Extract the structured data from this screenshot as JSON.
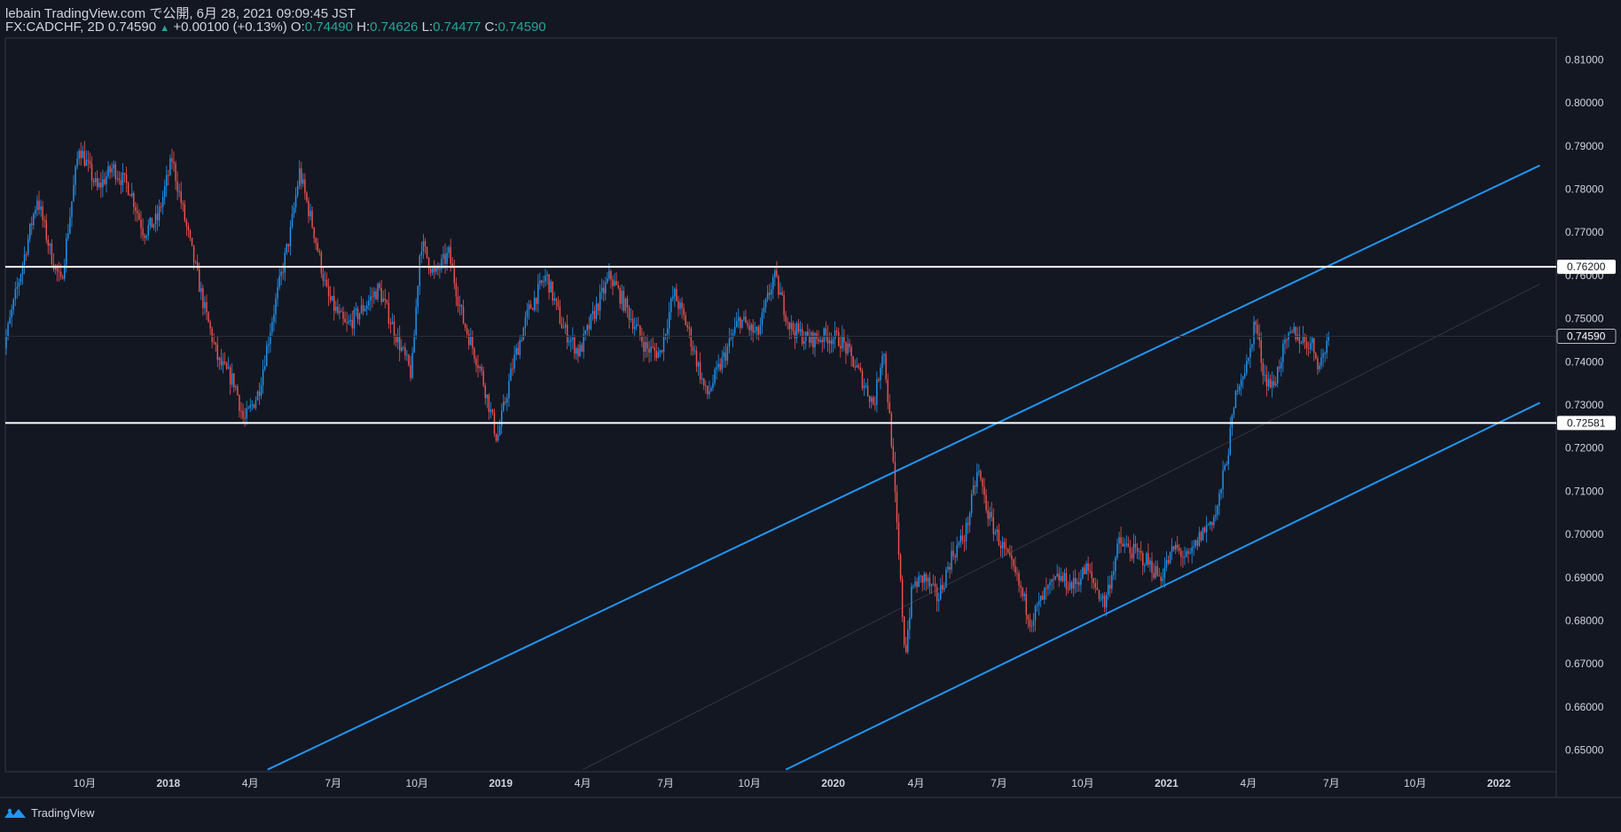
{
  "header": {
    "title": "lebain TradingView.com で公開, 6月 28, 2021 09:09:45 JST",
    "symbol": "FX:CADCHF, 2D 0.74590",
    "change": "+0.00100 (+0.13%)",
    "o_label": "O:",
    "o_value": "0.74490",
    "h_label": "H:",
    "h_value": "0.74626",
    "l_label": "L:",
    "l_value": "0.74477",
    "c_label": "C:",
    "c_value": "0.74590"
  },
  "footer": {
    "brand": "TradingView"
  },
  "colors": {
    "background": "#131722",
    "up": "#2196f3",
    "down": "#ef5350",
    "line": "#2196f3",
    "level": "#ffffff",
    "text": "#d1d4dc",
    "accent": "#26a69a"
  },
  "chart_data": {
    "type": "candlestick",
    "ylim": [
      0.645,
      0.815
    ],
    "y_ticks": [
      "0.81000",
      "0.80000",
      "0.79000",
      "0.78000",
      "0.77000",
      "0.76000",
      "0.75000",
      "0.74000",
      "0.73000",
      "0.72000",
      "0.71000",
      "0.70000",
      "0.69000",
      "0.68000",
      "0.67000",
      "0.66000",
      "0.65000"
    ],
    "x_ticks": [
      {
        "label": "10月",
        "date": "2017-10-01"
      },
      {
        "label": "2018",
        "date": "2018-01-01"
      },
      {
        "label": "4月",
        "date": "2018-04-01"
      },
      {
        "label": "7月",
        "date": "2018-07-01"
      },
      {
        "label": "10月",
        "date": "2018-10-01"
      },
      {
        "label": "2019",
        "date": "2019-01-01"
      },
      {
        "label": "4月",
        "date": "2019-04-01"
      },
      {
        "label": "7月",
        "date": "2019-07-01"
      },
      {
        "label": "10月",
        "date": "2019-10-01"
      },
      {
        "label": "2020",
        "date": "2020-01-01"
      },
      {
        "label": "4月",
        "date": "2020-04-01"
      },
      {
        "label": "7月",
        "date": "2020-07-01"
      },
      {
        "label": "10月",
        "date": "2020-10-01"
      },
      {
        "label": "2021",
        "date": "2021-01-01"
      },
      {
        "label": "4月",
        "date": "2021-04-01"
      },
      {
        "label": "7月",
        "date": "2021-07-01"
      },
      {
        "label": "10月",
        "date": "2021-10-01"
      },
      {
        "label": "2022",
        "date": "2022-01-01"
      }
    ],
    "price_path": [
      [
        "2017-07-01",
        0.74
      ],
      [
        "2017-07-20",
        0.758
      ],
      [
        "2017-08-10",
        0.778
      ],
      [
        "2017-08-25",
        0.765
      ],
      [
        "2017-09-05",
        0.758
      ],
      [
        "2017-09-25",
        0.79
      ],
      [
        "2017-10-15",
        0.78
      ],
      [
        "2017-11-01",
        0.785
      ],
      [
        "2017-11-20",
        0.78
      ],
      [
        "2017-12-05",
        0.77
      ],
      [
        "2017-12-20",
        0.773
      ],
      [
        "2018-01-05",
        0.787
      ],
      [
        "2018-01-20",
        0.772
      ],
      [
        "2018-02-10",
        0.752
      ],
      [
        "2018-02-25",
        0.74
      ],
      [
        "2018-03-15",
        0.735
      ],
      [
        "2018-03-25",
        0.726
      ],
      [
        "2018-04-10",
        0.733
      ],
      [
        "2018-04-25",
        0.75
      ],
      [
        "2018-05-15",
        0.77
      ],
      [
        "2018-05-25",
        0.784
      ],
      [
        "2018-06-10",
        0.77
      ],
      [
        "2018-06-25",
        0.755
      ],
      [
        "2018-07-15",
        0.748
      ],
      [
        "2018-08-01",
        0.752
      ],
      [
        "2018-08-20",
        0.757
      ],
      [
        "2018-09-10",
        0.745
      ],
      [
        "2018-09-25",
        0.737
      ],
      [
        "2018-10-05",
        0.768
      ],
      [
        "2018-10-20",
        0.76
      ],
      [
        "2018-11-05",
        0.765
      ],
      [
        "2018-11-20",
        0.75
      ],
      [
        "2018-12-10",
        0.738
      ],
      [
        "2018-12-28",
        0.722
      ],
      [
        "2019-01-15",
        0.74
      ],
      [
        "2019-02-01",
        0.752
      ],
      [
        "2019-02-20",
        0.76
      ],
      [
        "2019-03-10",
        0.748
      ],
      [
        "2019-03-28",
        0.742
      ],
      [
        "2019-04-15",
        0.752
      ],
      [
        "2019-05-01",
        0.76
      ],
      [
        "2019-05-20",
        0.752
      ],
      [
        "2019-06-10",
        0.743
      ],
      [
        "2019-06-25",
        0.742
      ],
      [
        "2019-07-10",
        0.756
      ],
      [
        "2019-07-25",
        0.748
      ],
      [
        "2019-08-15",
        0.732
      ],
      [
        "2019-09-05",
        0.742
      ],
      [
        "2019-09-20",
        0.75
      ],
      [
        "2019-10-10",
        0.746
      ],
      [
        "2019-10-28",
        0.76
      ],
      [
        "2019-11-15",
        0.748
      ],
      [
        "2019-12-05",
        0.745
      ],
      [
        "2019-12-25",
        0.746
      ],
      [
        "2020-01-10",
        0.745
      ],
      [
        "2020-01-28",
        0.738
      ],
      [
        "2020-02-15",
        0.73
      ],
      [
        "2020-02-25",
        0.744
      ],
      [
        "2020-03-05",
        0.722
      ],
      [
        "2020-03-12",
        0.698
      ],
      [
        "2020-03-20",
        0.672
      ],
      [
        "2020-03-28",
        0.688
      ],
      [
        "2020-04-10",
        0.69
      ],
      [
        "2020-04-25",
        0.685
      ],
      [
        "2020-05-10",
        0.695
      ],
      [
        "2020-05-25",
        0.7
      ],
      [
        "2020-06-08",
        0.715
      ],
      [
        "2020-06-20",
        0.704
      ],
      [
        "2020-07-05",
        0.697
      ],
      [
        "2020-07-20",
        0.69
      ],
      [
        "2020-08-05",
        0.68
      ],
      [
        "2020-08-20",
        0.686
      ],
      [
        "2020-09-05",
        0.69
      ],
      [
        "2020-09-20",
        0.688
      ],
      [
        "2020-10-05",
        0.692
      ],
      [
        "2020-10-25",
        0.684
      ],
      [
        "2020-11-10",
        0.698
      ],
      [
        "2020-11-25",
        0.696
      ],
      [
        "2020-12-10",
        0.694
      ],
      [
        "2020-12-25",
        0.69
      ],
      [
        "2021-01-10",
        0.697
      ],
      [
        "2021-01-25",
        0.694
      ],
      [
        "2021-02-08",
        0.7
      ],
      [
        "2021-02-25",
        0.705
      ],
      [
        "2021-03-10",
        0.72
      ],
      [
        "2021-03-20",
        0.735
      ],
      [
        "2021-04-01",
        0.74
      ],
      [
        "2021-04-08",
        0.75
      ],
      [
        "2021-04-18",
        0.737
      ],
      [
        "2021-04-28",
        0.734
      ],
      [
        "2021-05-08",
        0.742
      ],
      [
        "2021-05-20",
        0.747
      ],
      [
        "2021-05-30",
        0.745
      ],
      [
        "2021-06-10",
        0.744
      ],
      [
        "2021-06-18",
        0.739
      ],
      [
        "2021-06-28",
        0.7459
      ]
    ],
    "levels": [
      {
        "price": 0.762,
        "label": "0.76200"
      },
      {
        "price": 0.72581,
        "label": "0.72581"
      }
    ],
    "channel": {
      "upper": [
        [
          "2018-04-20",
          0.6455
        ],
        [
          "2022-02-15",
          0.7855
        ]
      ],
      "lower": [
        [
          "2019-11-10",
          0.6455
        ],
        [
          "2022-02-15",
          0.7305
        ]
      ],
      "mid": [
        [
          "2019-04-01",
          0.6455
        ],
        [
          "2022-02-15",
          0.758
        ]
      ]
    },
    "last_price": {
      "price": 0.7459,
      "label": "0.74590"
    }
  }
}
